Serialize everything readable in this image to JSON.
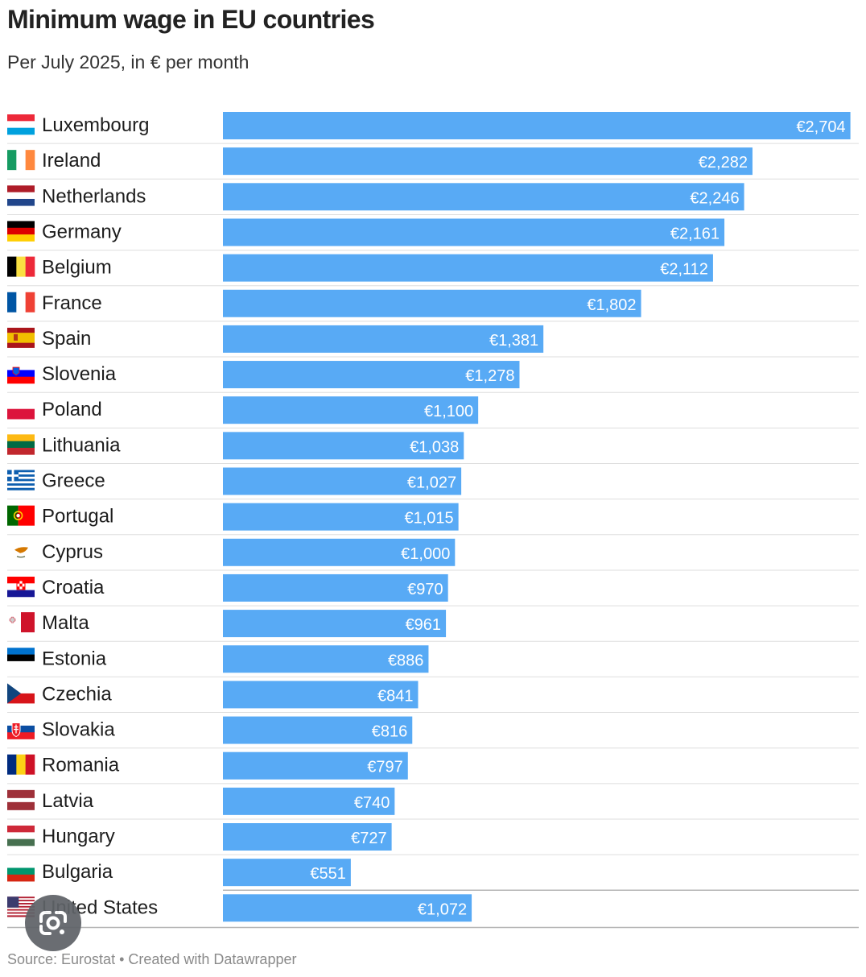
{
  "title": "Minimum wage in EU countries",
  "subtitle": "Per July 2025, in € per month",
  "source": "Source: Eurostat • Created with Datawrapper",
  "colors": {
    "bar": "#58aaf5",
    "bar_label": "#ffffff",
    "separator": "#dedede",
    "divider": "#b5b5b5"
  },
  "chart_data": {
    "type": "bar",
    "orientation": "horizontal",
    "title": "Minimum wage in EU countries",
    "subtitle": "Per July 2025, in € per month",
    "value_prefix": "€",
    "xlim": [
      0,
      2740
    ],
    "categories": [
      "Luxembourg",
      "Ireland",
      "Netherlands",
      "Germany",
      "Belgium",
      "France",
      "Spain",
      "Slovenia",
      "Poland",
      "Lithuania",
      "Greece",
      "Portugal",
      "Cyprus",
      "Croatia",
      "Malta",
      "Estonia",
      "Czechia",
      "Slovakia",
      "Romania",
      "Latvia",
      "Hungary",
      "Bulgaria",
      "United States"
    ],
    "values": [
      2704,
      2282,
      2246,
      2161,
      2112,
      1802,
      1381,
      1278,
      1100,
      1038,
      1027,
      1015,
      1000,
      970,
      961,
      886,
      841,
      816,
      797,
      740,
      727,
      551,
      1072
    ],
    "labels": [
      "€2,704",
      "€2,282",
      "€2,246",
      "€2,161",
      "€2,112",
      "€1,802",
      "€1,381",
      "€1,278",
      "€1,100",
      "€1,038",
      "€1,027",
      "€1,015",
      "€1,000",
      "€970",
      "€961",
      "€886",
      "€841",
      "€816",
      "€797",
      "€740",
      "€727",
      "€551",
      "€1,072"
    ],
    "flags": [
      "flag-luxembourg",
      "flag-ireland",
      "flag-netherlands",
      "flag-germany",
      "flag-belgium",
      "flag-france",
      "flag-spain",
      "flag-slovenia",
      "flag-poland",
      "flag-lithuania",
      "flag-greece",
      "flag-portugal",
      "flag-cyprus",
      "flag-croatia",
      "flag-malta",
      "flag-estonia",
      "flag-czechia",
      "flag-slovakia",
      "flag-romania",
      "flag-latvia",
      "flag-hungary",
      "flag-bulgaria",
      "flag-united-states"
    ],
    "grid": false,
    "legend": "none"
  },
  "overlay": {
    "icon": "google-lens-icon"
  }
}
